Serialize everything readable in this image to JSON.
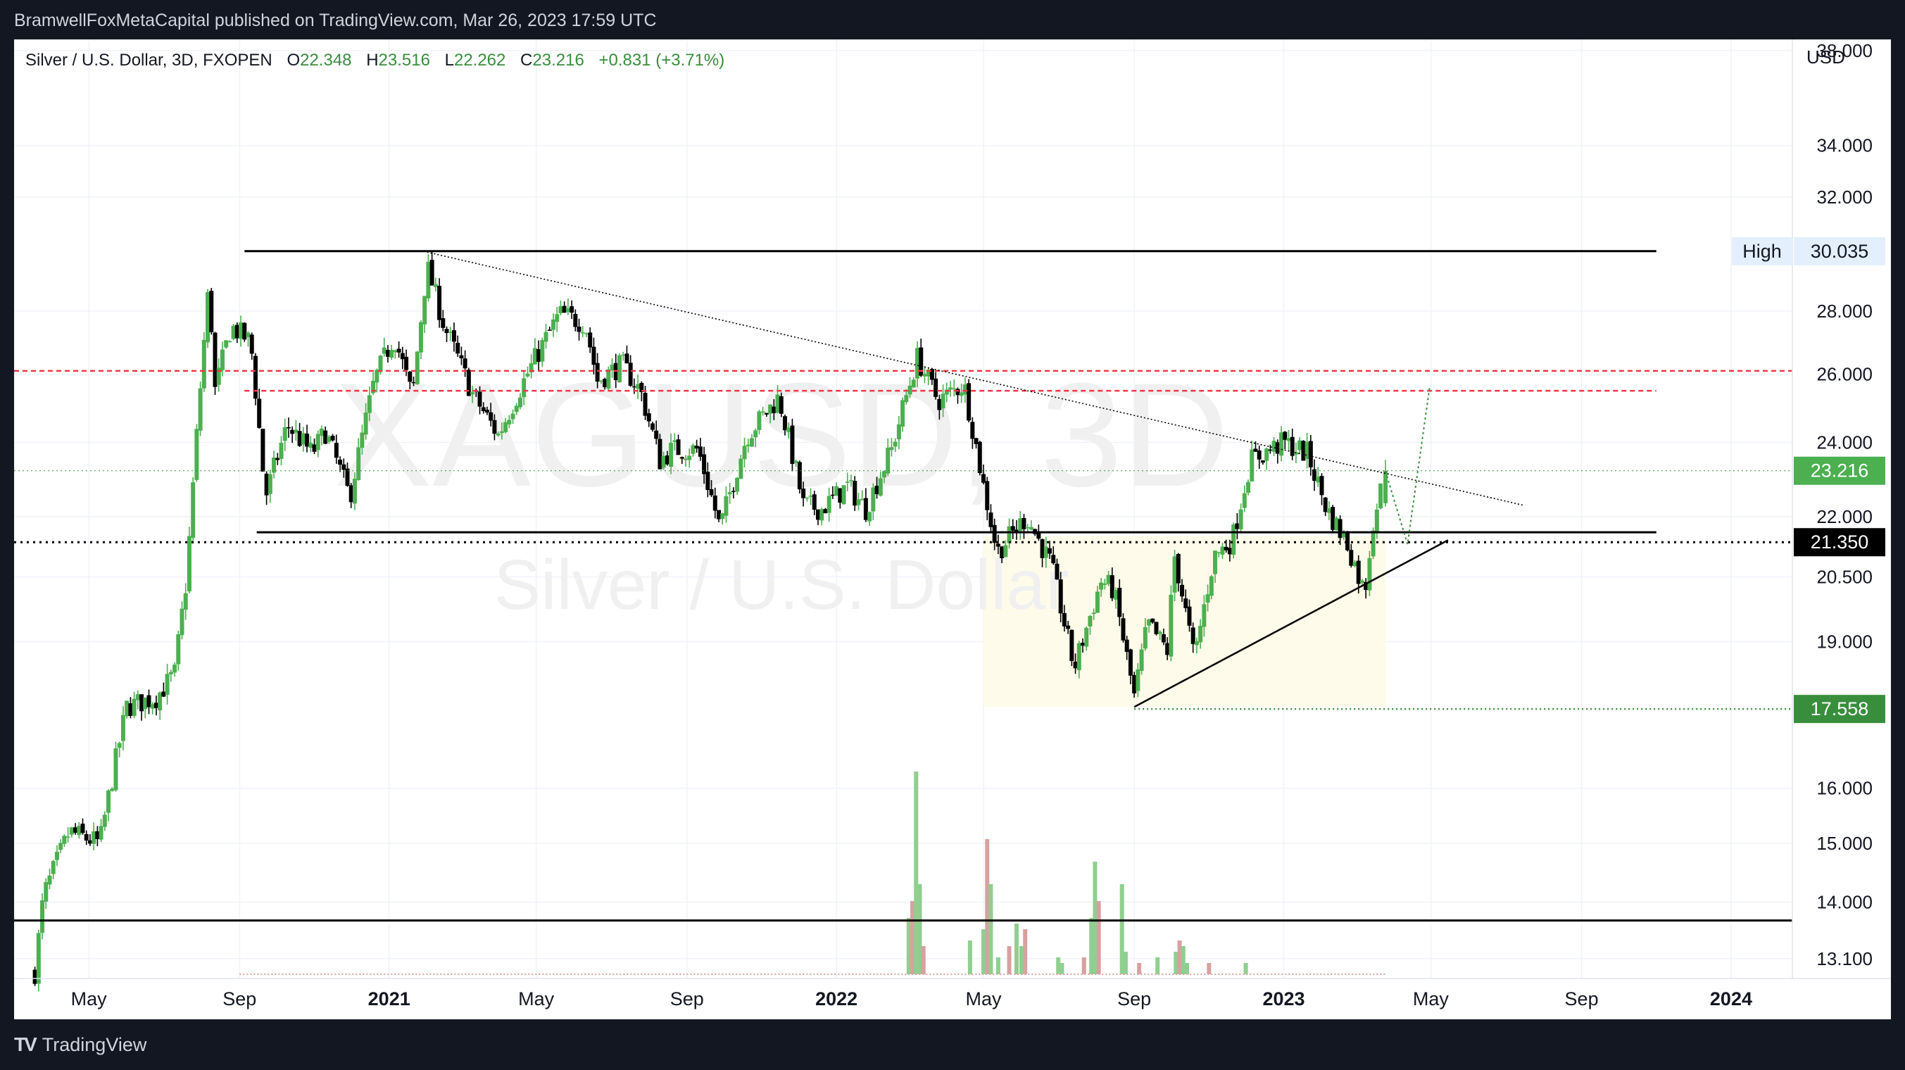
{
  "header": {
    "published": "BramwellFoxMetaCapital published on TradingView.com, Mar 26, 2023 17:59 UTC"
  },
  "legend": {
    "symbol": "Silver / U.S. Dollar, 3D, FXOPEN",
    "o_label": "O",
    "o_value": "22.348",
    "h_label": "H",
    "h_value": "23.516",
    "l_label": "L",
    "l_value": "22.262",
    "c_label": "C",
    "c_value": "23.216",
    "change": "+0.831 (+3.71%)"
  },
  "watermark": {
    "ticker": "XAGUSD, 3D",
    "name": "Silver / U.S. Dollar"
  },
  "footer": {
    "brand": "TradingView",
    "logo_icon": "tradingview-logo-icon"
  },
  "colors": {
    "background_dark": "#131722",
    "up": "#4caf50",
    "down": "#000000",
    "volume_up": "#8fcf8f",
    "volume_down": "#d9a0a0",
    "red_dashed": "#f23645",
    "green_level": "#388e3c",
    "highlight_zone": "#fffbea"
  },
  "chart_data": {
    "type": "candlestick",
    "title": "Silver / U.S. Dollar, 3D, FXOPEN",
    "price_axis_unit": "USD",
    "y_scale": "log",
    "ylim": [
      12.8,
      38.5
    ],
    "y_ticks": [
      "38.000",
      "34.000",
      "32.000",
      "28.000",
      "26.000",
      "24.000",
      "22.000",
      "20.500",
      "19.000",
      "16.000",
      "15.000",
      "14.000",
      "13.100"
    ],
    "x_ticks": [
      "May",
      "Sep",
      "2021",
      "May",
      "Sep",
      "2022",
      "May",
      "Sep",
      "2023",
      "May",
      "Sep",
      "2024"
    ],
    "x_range": [
      "2020-03-01",
      "2024-02-20"
    ],
    "price_labels": [
      {
        "label": "High",
        "value": "30.035"
      },
      {
        "label": "",
        "value": "23.216"
      },
      {
        "label": "",
        "value": "21.350"
      },
      {
        "label": "",
        "value": "17.558"
      }
    ],
    "last": {
      "open": 22.348,
      "high": 23.516,
      "low": 22.262,
      "close": 23.216
    },
    "path": [
      [
        "2020-03-18",
        12.9
      ],
      [
        "2020-03-25",
        14.1
      ],
      [
        "2020-04-15",
        15.2
      ],
      [
        "2020-05-10",
        15.0
      ],
      [
        "2020-06-01",
        17.6
      ],
      [
        "2020-06-25",
        17.8
      ],
      [
        "2020-07-10",
        18.3
      ],
      [
        "2020-07-20",
        20.5
      ],
      [
        "2020-07-28",
        24.2
      ],
      [
        "2020-08-07",
        28.9
      ],
      [
        "2020-08-12",
        25.5
      ],
      [
        "2020-08-25",
        27.5
      ],
      [
        "2020-09-10",
        27.0
      ],
      [
        "2020-09-22",
        22.5
      ],
      [
        "2020-10-10",
        24.5
      ],
      [
        "2020-10-30",
        23.7
      ],
      [
        "2020-11-10",
        24.3
      ],
      [
        "2020-11-30",
        22.5
      ],
      [
        "2020-12-20",
        25.8
      ],
      [
        "2021-01-05",
        27.2
      ],
      [
        "2021-01-20",
        25.3
      ],
      [
        "2021-02-01",
        29.5
      ],
      [
        "2021-02-15",
        27.5
      ],
      [
        "2021-03-10",
        25.4
      ],
      [
        "2021-03-31",
        24.2
      ],
      [
        "2021-04-25",
        26.1
      ],
      [
        "2021-05-20",
        27.9
      ],
      [
        "2021-06-10",
        27.6
      ],
      [
        "2021-06-20",
        25.8
      ],
      [
        "2021-07-10",
        26.3
      ],
      [
        "2021-07-25",
        25.5
      ],
      [
        "2021-08-10",
        23.5
      ],
      [
        "2021-08-20",
        23.8
      ],
      [
        "2021-09-10",
        23.8
      ],
      [
        "2021-09-28",
        21.7
      ],
      [
        "2021-10-20",
        24.2
      ],
      [
        "2021-11-15",
        25.3
      ],
      [
        "2021-12-05",
        22.3
      ],
      [
        "2021-12-20",
        22.2
      ],
      [
        "2022-01-10",
        22.8
      ],
      [
        "2022-01-25",
        22.2
      ],
      [
        "2022-02-15",
        23.8
      ],
      [
        "2022-03-08",
        26.5
      ],
      [
        "2022-03-25",
        25.2
      ],
      [
        "2022-04-15",
        25.7
      ],
      [
        "2022-05-01",
        22.8
      ],
      [
        "2022-05-12",
        21.1
      ],
      [
        "2022-06-05",
        22.0
      ],
      [
        "2022-06-25",
        20.8
      ],
      [
        "2022-07-14",
        18.4
      ],
      [
        "2022-08-05",
        20.4
      ],
      [
        "2022-08-15",
        20.2
      ],
      [
        "2022-09-01",
        17.8
      ],
      [
        "2022-09-12",
        19.4
      ],
      [
        "2022-09-28",
        18.8
      ],
      [
        "2022-10-04",
        21.0
      ],
      [
        "2022-10-20",
        18.6
      ],
      [
        "2022-11-05",
        21.0
      ],
      [
        "2022-11-20",
        21.4
      ],
      [
        "2022-12-05",
        23.5
      ],
      [
        "2023-01-01",
        24.0
      ],
      [
        "2023-01-20",
        23.7
      ],
      [
        "2023-02-05",
        22.2
      ],
      [
        "2023-02-22",
        21.3
      ],
      [
        "2023-03-08",
        20.1
      ],
      [
        "2023-03-15",
        21.9
      ],
      [
        "2023-03-25",
        23.2
      ]
    ],
    "volume": [
      {
        "date": "2022-03-01",
        "value": 1.0
      },
      {
        "date": "2022-03-04",
        "value": 1.3
      },
      {
        "date": "2022-03-07",
        "value": 3.6
      },
      {
        "date": "2022-03-10",
        "value": 1.6
      },
      {
        "date": "2022-03-13",
        "value": 0.5
      },
      {
        "date": "2022-04-20",
        "value": 0.6
      },
      {
        "date": "2022-05-01",
        "value": 0.8
      },
      {
        "date": "2022-05-04",
        "value": 2.4
      },
      {
        "date": "2022-05-07",
        "value": 1.6
      },
      {
        "date": "2022-05-13",
        "value": 0.3
      },
      {
        "date": "2022-05-22",
        "value": 0.5
      },
      {
        "date": "2022-05-28",
        "value": 0.9
      },
      {
        "date": "2022-06-01",
        "value": 0.5
      },
      {
        "date": "2022-06-04",
        "value": 0.8
      },
      {
        "date": "2022-07-01",
        "value": 0.3
      },
      {
        "date": "2022-07-04",
        "value": 0.2
      },
      {
        "date": "2022-07-22",
        "value": 0.3
      },
      {
        "date": "2022-07-28",
        "value": 1.0
      },
      {
        "date": "2022-07-31",
        "value": 2.0
      },
      {
        "date": "2022-08-03",
        "value": 1.3
      },
      {
        "date": "2022-08-22",
        "value": 1.6
      },
      {
        "date": "2022-08-25",
        "value": 0.4
      },
      {
        "date": "2022-09-05",
        "value": 0.2
      },
      {
        "date": "2022-09-20",
        "value": 0.3
      },
      {
        "date": "2022-10-05",
        "value": 0.4
      },
      {
        "date": "2022-10-08",
        "value": 0.6
      },
      {
        "date": "2022-10-11",
        "value": 0.5
      },
      {
        "date": "2022-10-14",
        "value": 0.2
      },
      {
        "date": "2022-11-01",
        "value": 0.2
      },
      {
        "date": "2022-12-01",
        "value": 0.2
      }
    ],
    "drawings": [
      {
        "type": "horizontal-line",
        "style": "solid",
        "value": 30.035,
        "from": "2020-09-05",
        "to": "2023-11-01"
      },
      {
        "type": "horizontal-line",
        "style": "solid",
        "value": 21.6,
        "from": "2020-09-15",
        "to": "2023-11-01"
      },
      {
        "type": "horizontal-line",
        "style": "solid",
        "value": 13.7,
        "from": "2020-03-01",
        "to": "2024-02-20"
      },
      {
        "type": "horizontal-line",
        "style": "dotted",
        "value": 21.35,
        "from": "2020-03-01",
        "to": "2024-02-20"
      },
      {
        "type": "horizontal-line",
        "style": "dashed-red",
        "value": 26.1,
        "from": "2020-03-01",
        "to": "2024-02-20"
      },
      {
        "type": "horizontal-line",
        "style": "dashed-red",
        "value": 25.5,
        "from": "2020-09-05",
        "to": "2023-11-01"
      },
      {
        "type": "horizontal-line",
        "style": "dotted-green",
        "value": 23.216,
        "from": "2020-03-01",
        "to": "2024-02-20"
      },
      {
        "type": "horizontal-line",
        "style": "dotted-green",
        "value": 17.558,
        "from": "2022-09-01",
        "to": "2024-02-20"
      },
      {
        "type": "trend-line",
        "style": "dotted",
        "points": [
          [
            "2021-02-01",
            30.0
          ],
          [
            "2023-07-15",
            22.3
          ]
        ]
      },
      {
        "type": "trend-line",
        "style": "solid",
        "points": [
          [
            "2022-09-01",
            17.6
          ],
          [
            "2023-05-15",
            21.4
          ]
        ]
      },
      {
        "type": "projection",
        "style": "dotted-green",
        "points": [
          [
            "2023-03-25",
            23.2
          ],
          [
            "2023-04-12",
            21.3
          ],
          [
            "2023-04-30",
            25.6
          ]
        ]
      },
      {
        "type": "zone",
        "from": "2022-05-01",
        "to": "2023-03-25",
        "low": 17.6,
        "high": 21.5
      }
    ]
  }
}
